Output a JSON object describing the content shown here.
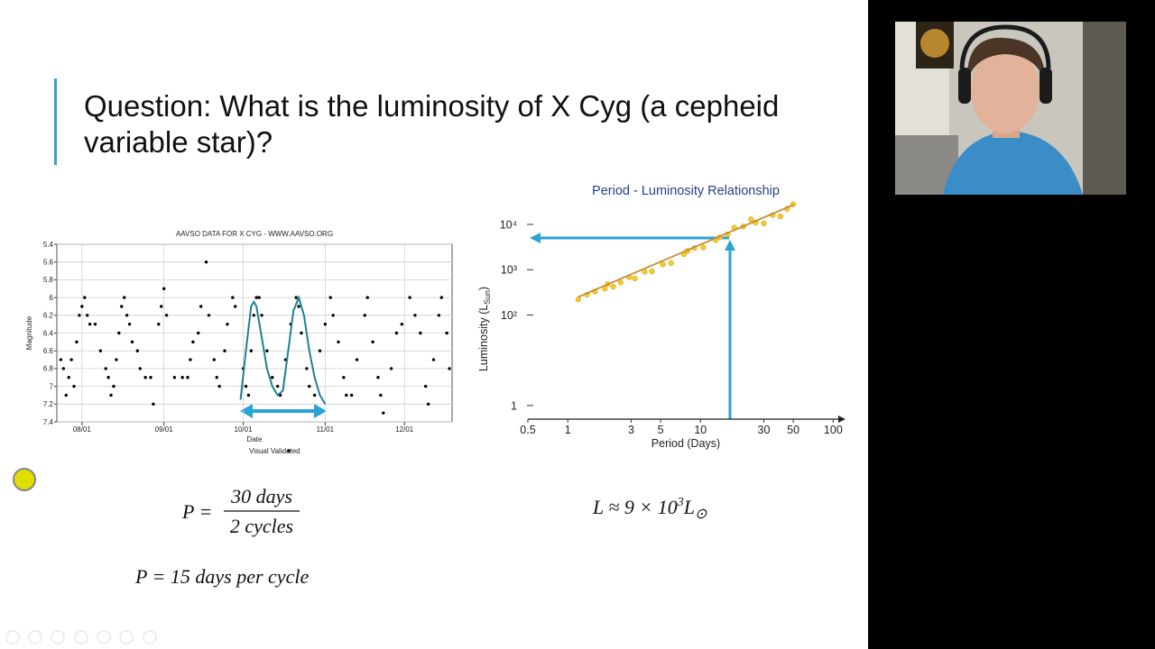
{
  "slide": {
    "title_lines": [
      "Question: What is the luminosity of X Cyg (a cepheid",
      "variable star)?"
    ],
    "equation_1": {
      "lhs": "P =",
      "numerator": "30 days",
      "denominator": "2 cycles"
    },
    "equation_2": "P = 15 days per cycle",
    "equation_3": {
      "main": "L ≈ 9 × 10",
      "exponent": "3",
      "symbol": "L",
      "subscript": "⊙"
    }
  },
  "chart_data": [
    {
      "type": "scatter",
      "title": "AAVSO DATA FOR X CYG - WWW.AAVSO.ORG",
      "x_label": "Date",
      "y_label": "Magnitude",
      "y_inverted": true,
      "grid": true,
      "xlim": [
        -9.5,
        140
      ],
      "ylim": [
        5.4,
        7.4
      ],
      "xticks": [
        {
          "value": 0,
          "label": "08/01"
        },
        {
          "value": 31,
          "label": "09/01"
        },
        {
          "value": 61,
          "label": "10/01"
        },
        {
          "value": 92,
          "label": "11/01"
        },
        {
          "value": 122,
          "label": "12/01"
        }
      ],
      "yticks": [
        5.4,
        5.6,
        5.8,
        6,
        6.2,
        6.4,
        6.6,
        6.8,
        7,
        7.2,
        7.4
      ],
      "series": [
        {
          "name": "Visual Validated",
          "color": "#000000",
          "x": [
            -8,
            -7,
            -6,
            -5,
            -4,
            -3,
            -2,
            -1,
            0,
            1,
            2,
            3,
            5,
            7,
            9,
            10,
            11,
            12,
            13,
            14,
            15,
            16,
            17,
            18,
            19,
            21,
            22,
            24,
            26,
            27,
            29,
            30,
            31,
            32,
            35,
            38,
            40,
            41,
            42,
            44,
            45,
            47,
            48,
            50,
            51,
            52,
            54,
            55,
            57,
            58,
            61,
            62,
            63,
            64,
            65,
            66,
            67,
            68,
            70,
            72,
            74,
            75,
            77,
            79,
            81,
            82,
            83,
            85,
            86,
            88,
            90,
            92,
            94,
            95,
            97,
            99,
            100,
            102,
            104,
            107,
            108,
            110,
            112,
            113,
            114,
            117,
            119,
            121,
            124,
            126,
            128,
            130,
            131,
            133,
            135,
            136,
            138,
            139
          ],
          "values": [
            6.7,
            6.8,
            7.1,
            6.9,
            6.7,
            7.0,
            6.5,
            6.2,
            6.1,
            6.0,
            6.2,
            6.3,
            6.3,
            6.6,
            6.8,
            6.9,
            7.1,
            7.0,
            6.7,
            6.4,
            6.1,
            6.0,
            6.2,
            6.3,
            6.5,
            6.6,
            6.8,
            6.9,
            6.9,
            7.2,
            6.3,
            6.1,
            5.9,
            6.2,
            6.9,
            6.9,
            6.9,
            6.7,
            6.5,
            6.4,
            6.1,
            5.6,
            6.2,
            6.7,
            6.9,
            7.0,
            6.6,
            6.3,
            6.0,
            6.1,
            6.8,
            7.0,
            7.1,
            6.6,
            6.2,
            6.0,
            6.0,
            6.2,
            6.6,
            6.9,
            7.0,
            7.1,
            6.7,
            6.3,
            6.0,
            6.1,
            6.4,
            6.8,
            7.0,
            7.1,
            6.6,
            6.3,
            6.0,
            6.2,
            6.5,
            6.9,
            7.1,
            7.1,
            6.7,
            6.2,
            6.0,
            6.5,
            6.9,
            7.1,
            7.3,
            6.8,
            6.4,
            6.3,
            6.0,
            6.2,
            6.4,
            7.0,
            7.2,
            6.7,
            6.2,
            6.0,
            6.4,
            6.8
          ]
        },
        {
          "type": "line",
          "color": "#1f7f95",
          "x": [
            60,
            62,
            64,
            65,
            66,
            68,
            70,
            72,
            74,
            76,
            78,
            80,
            82,
            84,
            86,
            88,
            90,
            92
          ],
          "values": [
            7.15,
            6.6,
            6.1,
            6.05,
            6.1,
            6.45,
            6.8,
            7.0,
            7.1,
            7.05,
            6.6,
            6.15,
            6.0,
            6.2,
            6.6,
            6.9,
            7.1,
            7.2
          ]
        }
      ]
    },
    {
      "type": "scatter",
      "title": "Period - Luminosity Relationship",
      "x_label": "Period (Days)",
      "y_label": {
        "main": "Luminosity (L",
        "subscript": "Sun",
        "end": ")"
      },
      "x_log": true,
      "y_log": true,
      "xlim": [
        0.5,
        120
      ],
      "ylim": [
        0.5,
        30000
      ],
      "xticks": [
        0.5,
        1,
        3,
        5,
        10,
        30,
        50,
        100
      ],
      "yticks": [
        1,
        {
          "value": 100,
          "label": "10²"
        },
        {
          "value": 1000,
          "label": "10³"
        },
        {
          "value": 10000,
          "label": "10⁴"
        }
      ],
      "series": [
        {
          "color": "#f5cc2a",
          "x": [
            1.2,
            1.4,
            1.6,
            1.9,
            2.0,
            2.2,
            2.5,
            2.9,
            3.2,
            3.8,
            4.3,
            5.2,
            6.0,
            7.5,
            8.0,
            9.0,
            10.5,
            13,
            14,
            16,
            18,
            21,
            24,
            26,
            30,
            35,
            40,
            45,
            50
          ],
          "values": [
            220,
            280,
            330,
            380,
            480,
            420,
            520,
            680,
            640,
            900,
            920,
            1300,
            1400,
            2200,
            2600,
            3000,
            3100,
            4500,
            5200,
            6000,
            8500,
            9000,
            13000,
            11000,
            10500,
            16000,
            15000,
            22000,
            28000
          ]
        },
        {
          "type": "line",
          "color": "#c98a2e",
          "x": [
            1.2,
            50
          ],
          "values": [
            250,
            27000
          ]
        }
      ]
    }
  ]
}
